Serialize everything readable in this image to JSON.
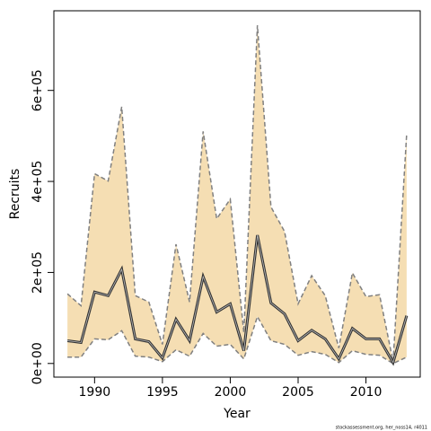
{
  "chart_data": {
    "type": "band-line",
    "x_label": "Year",
    "y_label": "Recruits",
    "footer": "stockassessment.org, her_noss14, r4011",
    "x": [
      1988,
      1989,
      1990,
      1991,
      1992,
      1993,
      1994,
      1995,
      1996,
      1997,
      1998,
      1999,
      2000,
      2001,
      2002,
      2003,
      2004,
      2005,
      2006,
      2007,
      2008,
      2009,
      2010,
      2011,
      2012,
      2013
    ],
    "values": [
      50000,
      46000,
      157000,
      149000,
      207000,
      54000,
      48000,
      12000,
      97000,
      50000,
      191000,
      113000,
      131000,
      28000,
      282000,
      133000,
      109000,
      50000,
      73000,
      54000,
      10000,
      77000,
      54000,
      54000,
      2000,
      105000
    ],
    "upper": [
      153000,
      127000,
      417000,
      401000,
      564000,
      149000,
      135000,
      42000,
      262000,
      135000,
      510000,
      318000,
      361000,
      68000,
      743000,
      344000,
      290000,
      131000,
      193000,
      149000,
      34000,
      199000,
      147000,
      151000,
      4000,
      504000
    ],
    "lower": [
      14000,
      14000,
      54000,
      52000,
      72000,
      16000,
      14000,
      4000,
      30000,
      16000,
      66000,
      38000,
      42000,
      10000,
      103000,
      50000,
      42000,
      18000,
      26000,
      20000,
      2000,
      28000,
      20000,
      18000,
      0,
      14000
    ],
    "line_color": "#333333",
    "band_color": "#f5deb3",
    "band_edge_color": "#808080",
    "xlim": [
      1987,
      2014
    ],
    "xticks": [
      1990,
      1995,
      2000,
      2005,
      2010
    ],
    "ylim": [
      -30000,
      775000
    ],
    "yticks": [
      {
        "value": 0,
        "label": "0e+00"
      },
      {
        "value": 200000,
        "label": "2e+05"
      },
      {
        "value": 400000,
        "label": "4e+05"
      },
      {
        "value": 600000,
        "label": "6e+05"
      }
    ]
  }
}
